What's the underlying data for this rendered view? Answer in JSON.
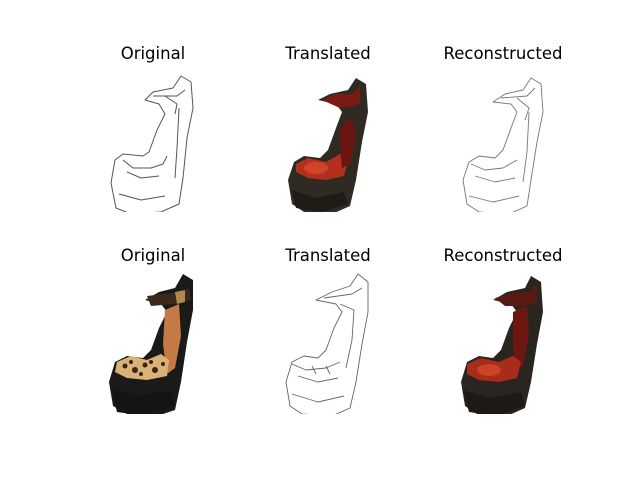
{
  "figure": {
    "rows": [
      {
        "panels": [
          {
            "title": "Original",
            "style": "sketch"
          },
          {
            "title": "Translated",
            "style": "photo"
          },
          {
            "title": "Reconstructed",
            "style": "sketch"
          }
        ]
      },
      {
        "panels": [
          {
            "title": "Original",
            "style": "photo-leopard"
          },
          {
            "title": "Translated",
            "style": "sketch"
          },
          {
            "title": "Reconstructed",
            "style": "photo"
          }
        ]
      }
    ]
  }
}
